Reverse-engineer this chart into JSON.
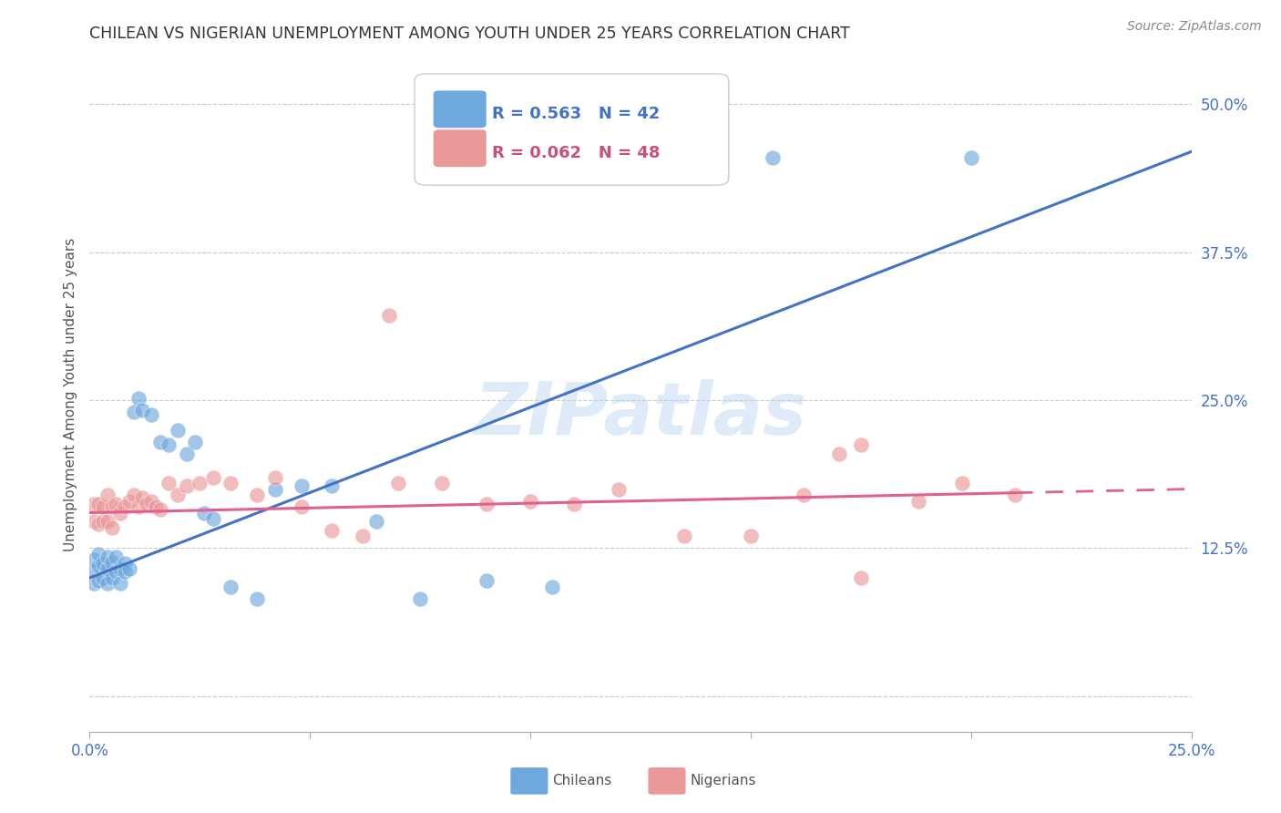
{
  "title": "CHILEAN VS NIGERIAN UNEMPLOYMENT AMONG YOUTH UNDER 25 YEARS CORRELATION CHART",
  "source": "Source: ZipAtlas.com",
  "ylabel": "Unemployment Among Youth under 25 years",
  "xlim": [
    0.0,
    0.25
  ],
  "ylim": [
    -0.03,
    0.54
  ],
  "chile_R": 0.563,
  "chile_N": 42,
  "nigeria_R": 0.062,
  "nigeria_N": 48,
  "chile_color": "#6fa8dc",
  "nigeria_color": "#ea9999",
  "blue_line_color": "#4472c4",
  "pink_line_color": "#e06090",
  "watermark": "ZIPatlas",
  "chile_x": [
    0.001,
    0.001,
    0.001,
    0.002,
    0.002,
    0.002,
    0.003,
    0.003,
    0.004,
    0.004,
    0.004,
    0.005,
    0.005,
    0.006,
    0.006,
    0.007,
    0.007,
    0.008,
    0.008,
    0.009,
    0.01,
    0.011,
    0.012,
    0.014,
    0.016,
    0.018,
    0.02,
    0.022,
    0.024,
    0.026,
    0.028,
    0.032,
    0.038,
    0.042,
    0.048,
    0.055,
    0.065,
    0.075,
    0.09,
    0.105,
    0.155,
    0.2
  ],
  "chile_y": [
    0.095,
    0.105,
    0.115,
    0.098,
    0.11,
    0.12,
    0.1,
    0.112,
    0.095,
    0.108,
    0.118,
    0.1,
    0.113,
    0.105,
    0.118,
    0.108,
    0.095,
    0.112,
    0.105,
    0.108,
    0.24,
    0.252,
    0.242,
    0.238,
    0.215,
    0.212,
    0.225,
    0.205,
    0.215,
    0.155,
    0.15,
    0.092,
    0.082,
    0.175,
    0.178,
    0.178,
    0.148,
    0.082,
    0.098,
    0.092,
    0.455,
    0.455
  ],
  "nigeria_x": [
    0.001,
    0.001,
    0.002,
    0.002,
    0.003,
    0.003,
    0.004,
    0.004,
    0.005,
    0.005,
    0.006,
    0.007,
    0.008,
    0.009,
    0.01,
    0.011,
    0.012,
    0.013,
    0.014,
    0.015,
    0.016,
    0.018,
    0.02,
    0.022,
    0.025,
    0.028,
    0.032,
    0.038,
    0.042,
    0.048,
    0.055,
    0.062,
    0.07,
    0.08,
    0.09,
    0.1,
    0.11,
    0.12,
    0.135,
    0.15,
    0.162,
    0.175,
    0.188,
    0.198,
    0.21,
    0.17,
    0.068,
    0.175
  ],
  "nigeria_y": [
    0.148,
    0.162,
    0.145,
    0.162,
    0.148,
    0.16,
    0.17,
    0.148,
    0.142,
    0.16,
    0.162,
    0.155,
    0.16,
    0.165,
    0.17,
    0.16,
    0.168,
    0.162,
    0.165,
    0.16,
    0.158,
    0.18,
    0.17,
    0.178,
    0.18,
    0.185,
    0.18,
    0.17,
    0.185,
    0.16,
    0.14,
    0.135,
    0.18,
    0.18,
    0.162,
    0.165,
    0.162,
    0.175,
    0.135,
    0.135,
    0.17,
    0.1,
    0.165,
    0.18,
    0.17,
    0.205,
    0.322,
    0.212
  ]
}
